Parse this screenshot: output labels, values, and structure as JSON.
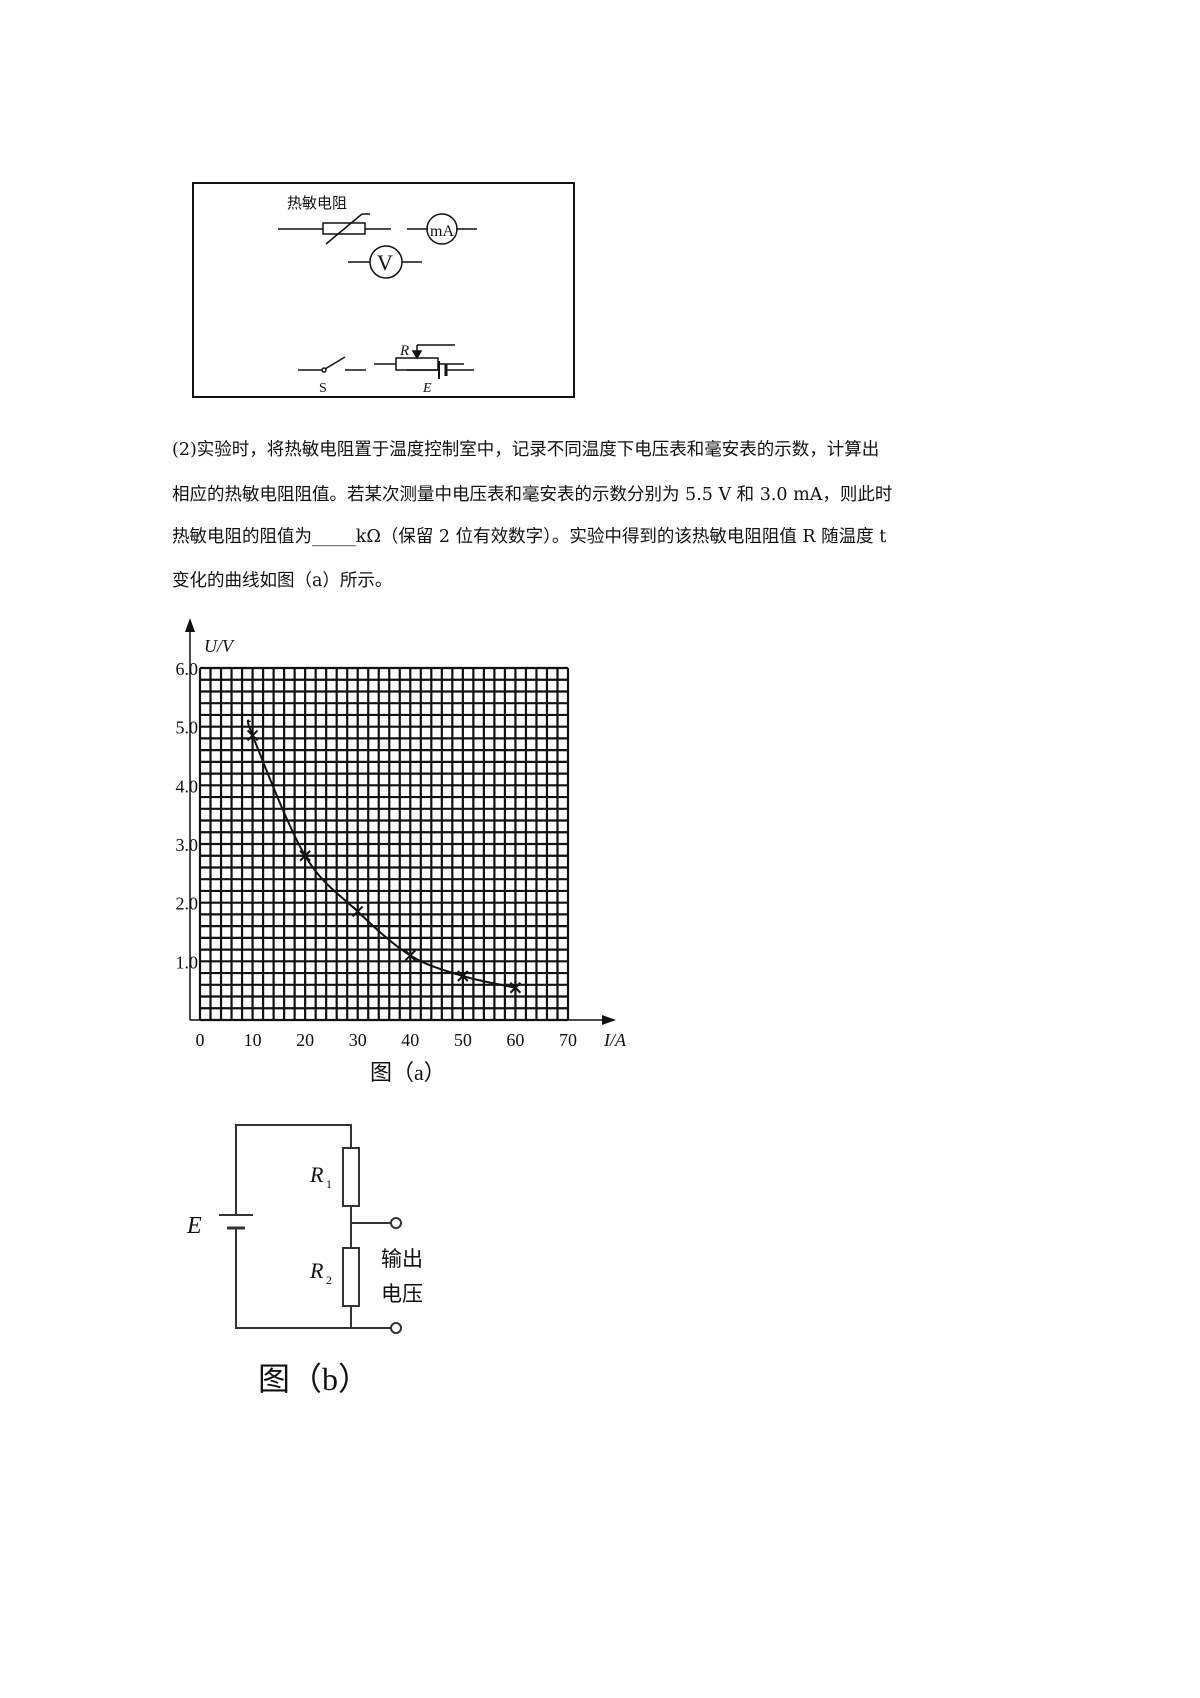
{
  "components_box": {
    "thermistor_label": "热敏电阻",
    "ammeter_label": "mA",
    "voltmeter_label": "V",
    "rheostat_label": "R",
    "switch_label": "S",
    "battery_label": "E"
  },
  "text": {
    "line1": "(2)实验时，将热敏电阻置于温度控制室中，记录不同温度下电压表和毫安表的示数，计算出",
    "line2": "相应的热敏电阻阻值。若某次测量中电压表和毫安表的示数分别为 5.5 V 和 3.0 mA，则此时",
    "line3": "热敏电阻的阻值为_____kΩ（保留 2 位有效数字）。实验中得到的该热敏电阻阻值 R 随温度 t",
    "line4": "变化的曲线如图（a）所示。"
  },
  "chart_data": {
    "type": "line",
    "title": "图（a）",
    "xlabel": "I/A",
    "ylabel": "U/V",
    "xlim": [
      0,
      70
    ],
    "ylim": [
      0,
      6
    ],
    "xticks": [
      "0",
      "10",
      "20",
      "30",
      "40",
      "50",
      "60",
      "70"
    ],
    "yticks": [
      "1.0",
      "2.0",
      "3.0",
      "4.0",
      "5.0",
      "6.0"
    ],
    "grid": true,
    "marker": "x",
    "x": [
      10,
      20,
      30,
      40,
      50,
      60
    ],
    "y": [
      4.85,
      2.8,
      1.85,
      1.1,
      0.75,
      0.55
    ]
  },
  "circuit_b": {
    "caption": "图（b）",
    "source_label": "E",
    "r1_label": "R",
    "r1_sub": "1",
    "r2_label": "R",
    "r2_sub": "2",
    "output_label_1": "输出",
    "output_label_2": "电压"
  }
}
